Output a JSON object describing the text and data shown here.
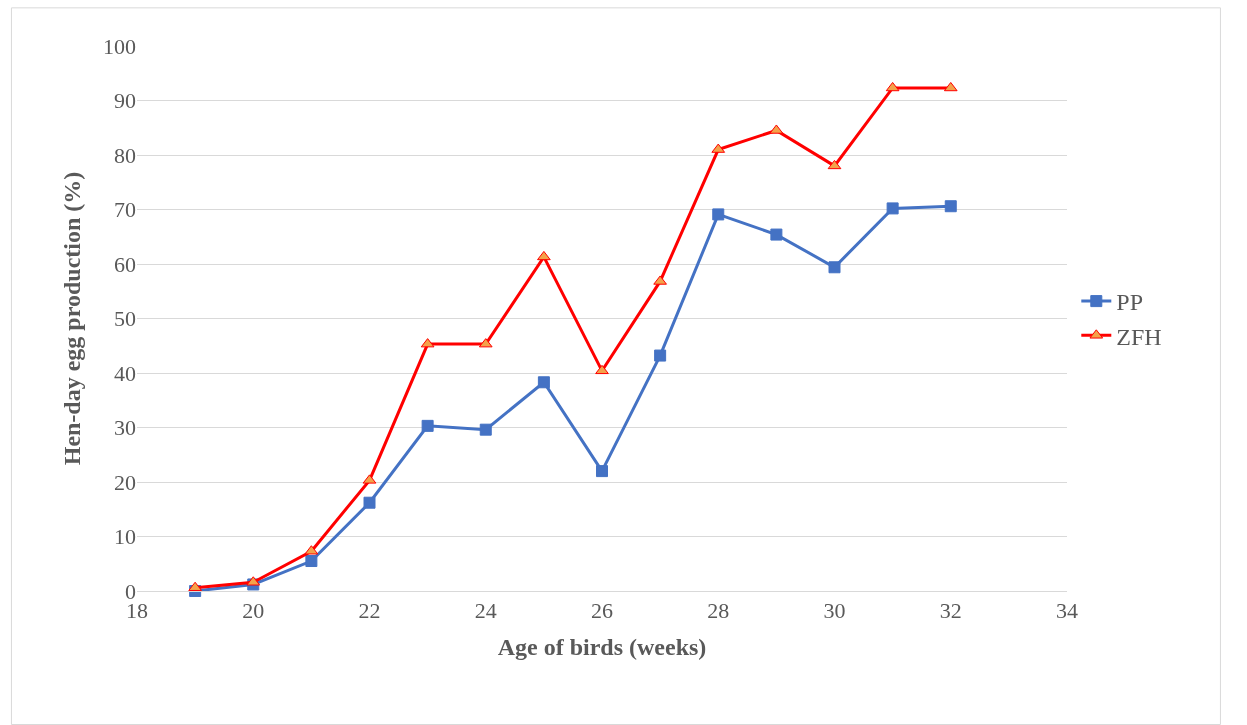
{
  "chart_data": {
    "type": "line",
    "xlabel": "Age of birds (weeks)",
    "ylabel": "Hen-day egg production (%)",
    "x": [
      19,
      20,
      21,
      22,
      23,
      24,
      25,
      26,
      27,
      28,
      29,
      30,
      31,
      32
    ],
    "series": [
      {
        "name": "PP",
        "color": "#4472c4",
        "marker": "square",
        "values": [
          0,
          1.2,
          5.5,
          16.2,
          30.3,
          29.6,
          38.3,
          22,
          43.2,
          69.1,
          65.4,
          59.4,
          70.2,
          70.6
        ]
      },
      {
        "name": "ZFH",
        "color": "#ff0000",
        "marker": "triangle",
        "values": [
          0.6,
          1.6,
          7.3,
          20.3,
          45.3,
          45.3,
          61.3,
          40.4,
          56.8,
          81,
          84.5,
          78,
          92.3,
          92.3
        ]
      }
    ],
    "xlim": [
      18,
      34
    ],
    "xticks": [
      18,
      20,
      22,
      24,
      26,
      28,
      30,
      32,
      34
    ],
    "ylim": [
      0,
      100
    ],
    "yticks": [
      0,
      10,
      20,
      30,
      40,
      50,
      60,
      70,
      80,
      90,
      100
    ],
    "grid": "y",
    "legend": "right",
    "line_style": "solid"
  }
}
